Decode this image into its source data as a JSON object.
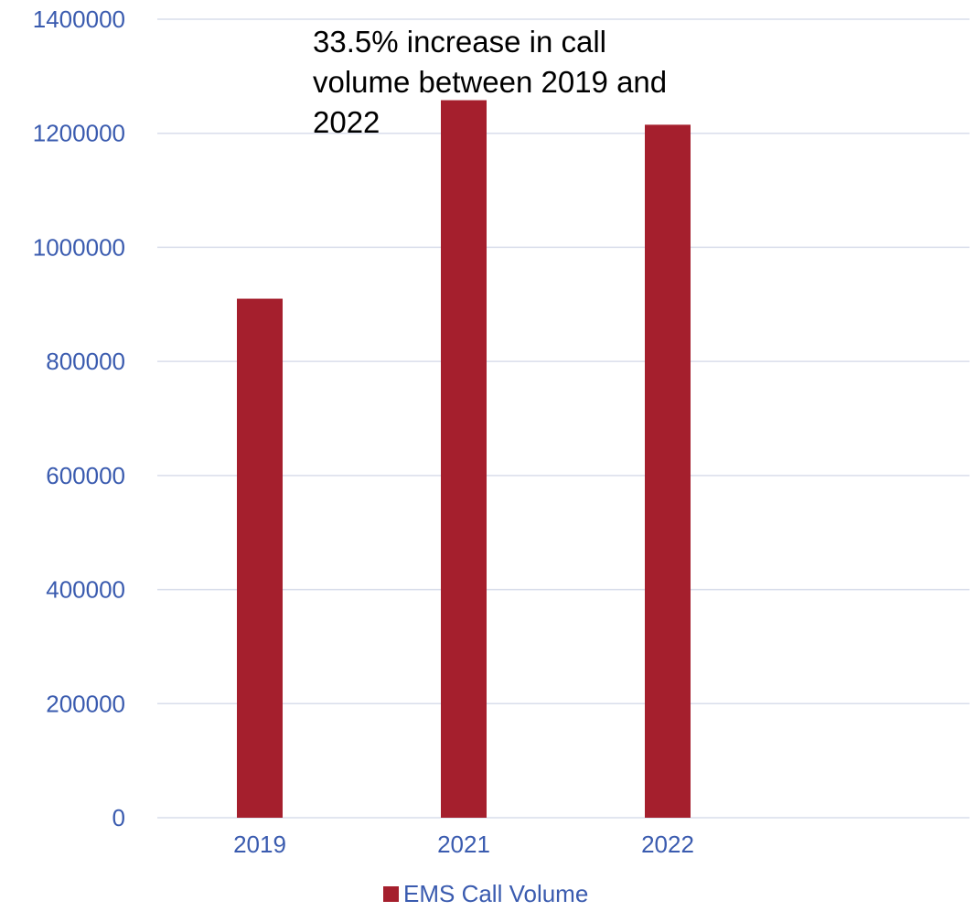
{
  "chart_data": {
    "type": "bar",
    "categories": [
      "2019",
      "2021",
      "2022"
    ],
    "series": [
      {
        "name": "EMS Call Volume",
        "values": [
          910000,
          1258000,
          1215000
        ],
        "color": "#A51F2D"
      }
    ],
    "ylim": [
      0,
      1400000
    ],
    "y_ticks": [
      "0",
      "200000",
      "400000",
      "600000",
      "800000",
      "1000000",
      "1200000",
      "1400000"
    ],
    "annotation": [
      "33.5% increase in call",
      "volume between 2019 and",
      "2022"
    ],
    "grid": true,
    "legend_position": "bottom",
    "colors": {
      "axis_text": "#3A5BAF",
      "gridline": "#D9DEEB",
      "bar": "#A51F2D"
    }
  }
}
